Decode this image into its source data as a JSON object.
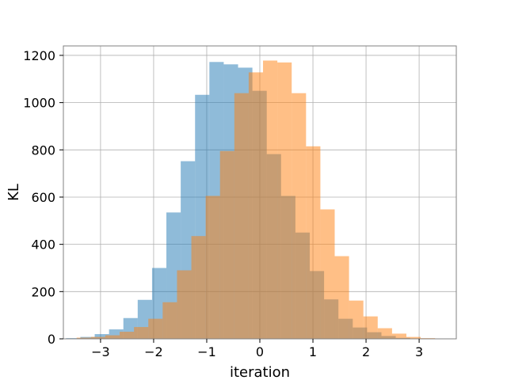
{
  "chart_data": {
    "type": "histogram",
    "title": "",
    "xlabel": "iteration",
    "ylabel": "KL",
    "xlim": [
      -3.7,
      3.7
    ],
    "ylim": [
      0,
      1240
    ],
    "xticks": [
      -3,
      -2,
      -1,
      0,
      1,
      2,
      3
    ],
    "xtick_labels": [
      "−3",
      "−2",
      "−1",
      "0",
      "1",
      "2",
      "3"
    ],
    "yticks": [
      0,
      200,
      400,
      600,
      800,
      1000,
      1200
    ],
    "ytick_labels": [
      "0",
      "200",
      "400",
      "600",
      "800",
      "1000",
      "1200"
    ],
    "grid": true,
    "legend": "none",
    "series": [
      {
        "color": "#1f77b4",
        "opacity": 0.5,
        "bin_edges": [
          -3.65,
          -3.38,
          -3.11,
          -2.84,
          -2.57,
          -2.3,
          -2.03,
          -1.76,
          -1.49,
          -1.22,
          -0.95,
          -0.68,
          -0.41,
          -0.14,
          0.13,
          0.4,
          0.67,
          0.94,
          1.21,
          1.48,
          1.75,
          2.02,
          2.29,
          2.56,
          2.83,
          3.1
        ],
        "counts": [
          3,
          8,
          20,
          40,
          88,
          165,
          300,
          535,
          752,
          1033,
          1172,
          1162,
          1148,
          1050,
          782,
          605,
          450,
          287,
          167,
          85,
          48,
          28,
          12,
          4,
          1
        ]
      },
      {
        "color": "#ff7f0e",
        "opacity": 0.5,
        "bin_edges": [
          -3.45,
          -3.18,
          -2.91,
          -2.64,
          -2.37,
          -2.1,
          -1.83,
          -1.56,
          -1.29,
          -1.02,
          -0.75,
          -0.48,
          -0.21,
          0.06,
          0.33,
          0.6,
          0.87,
          1.14,
          1.41,
          1.68,
          1.95,
          2.22,
          2.49,
          2.76,
          3.03,
          3.3
        ],
        "counts": [
          5,
          8,
          15,
          30,
          50,
          85,
          155,
          290,
          435,
          605,
          795,
          1040,
          1128,
          1178,
          1170,
          1040,
          815,
          548,
          350,
          162,
          95,
          45,
          22,
          8,
          3
        ]
      }
    ]
  }
}
